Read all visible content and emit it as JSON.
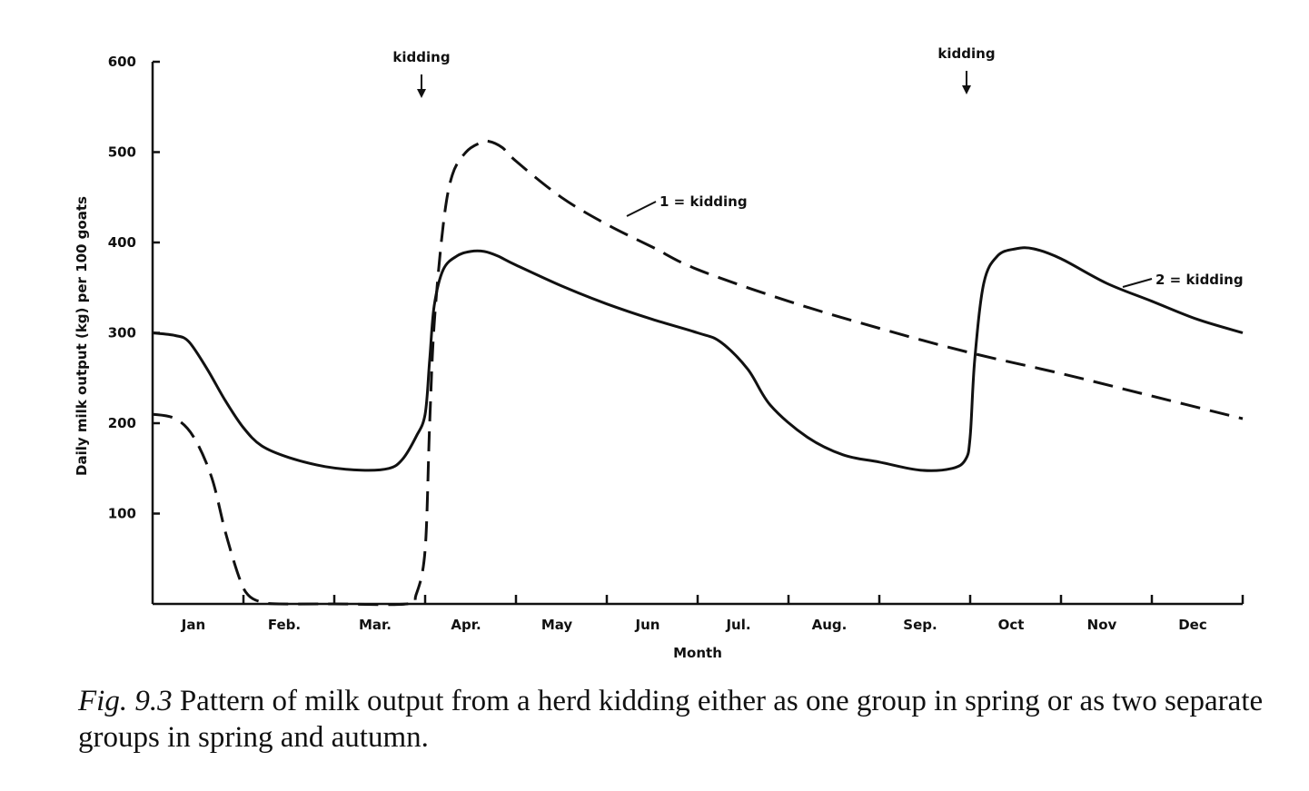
{
  "chart_data": {
    "type": "line",
    "title": "",
    "xlabel": "Month",
    "ylabel": "Daily milk output (kg) per 100 goats",
    "ylim": [
      0,
      600
    ],
    "yticks": [
      100,
      200,
      300,
      400,
      500,
      600
    ],
    "ytick_labels": [
      "100",
      "200",
      "300",
      "400",
      "500",
      "600"
    ],
    "xlim": [
      0,
      12
    ],
    "categories": [
      "Jan",
      "Feb.",
      "Mar.",
      "Apr.",
      "May",
      "Jun",
      "Jul.",
      "Aug.",
      "Sep.",
      "Oct",
      "Nov",
      "Dec"
    ],
    "grid": false,
    "legend": "none",
    "series": [
      {
        "name": "1 = kidding",
        "style": "dashed",
        "x": [
          0.0,
          0.25,
          0.45,
          0.65,
          0.8,
          0.95,
          1.05,
          1.2,
          1.4,
          2.0,
          2.8,
          2.9,
          3.0,
          3.05,
          3.1,
          3.2,
          3.3,
          3.45,
          3.6,
          3.7,
          3.85,
          4.0,
          4.5,
          5.0,
          5.5,
          6.0,
          7.0,
          8.0,
          9.0,
          10.0,
          11.0,
          12.0
        ],
        "y": [
          210,
          205,
          185,
          140,
          80,
          30,
          10,
          2,
          0,
          0,
          0,
          10,
          60,
          200,
          310,
          420,
          475,
          500,
          510,
          512,
          505,
          490,
          450,
          420,
          395,
          370,
          335,
          305,
          278,
          255,
          230,
          205
        ]
      },
      {
        "name": "2 = kidding",
        "style": "solid",
        "x": [
          0.0,
          0.25,
          0.4,
          0.6,
          0.8,
          1.0,
          1.2,
          1.5,
          1.9,
          2.3,
          2.6,
          2.75,
          2.9,
          3.0,
          3.05,
          3.1,
          3.2,
          3.35,
          3.5,
          3.65,
          3.8,
          4.0,
          4.5,
          5.0,
          5.5,
          6.0,
          6.25,
          6.55,
          6.8,
          7.2,
          7.6,
          8.0,
          8.45,
          8.8,
          8.95,
          9.0,
          9.05,
          9.15,
          9.3,
          9.5,
          9.7,
          10.0,
          10.5,
          11.0,
          11.5,
          12.0
        ],
        "y": [
          300,
          297,
          290,
          260,
          225,
          195,
          175,
          162,
          152,
          148,
          150,
          160,
          185,
          210,
          270,
          330,
          370,
          385,
          390,
          390,
          385,
          375,
          352,
          332,
          315,
          300,
          290,
          260,
          220,
          185,
          165,
          157,
          148,
          150,
          160,
          185,
          270,
          355,
          385,
          393,
          393,
          382,
          355,
          335,
          315,
          300
        ]
      }
    ],
    "annotations": [
      {
        "text": "kidding",
        "x": 3.0,
        "type": "arrow"
      },
      {
        "text": "kidding",
        "x": 9.0,
        "type": "arrow"
      },
      {
        "text": "1 = kidding",
        "series": 0
      },
      {
        "text": "2 = kidding",
        "series": 1
      }
    ]
  },
  "caption": {
    "label": "Fig.  9.3",
    "text": "Pattern of milk output from a herd kidding either as one group in spring or as two separate groups in spring and autumn."
  }
}
